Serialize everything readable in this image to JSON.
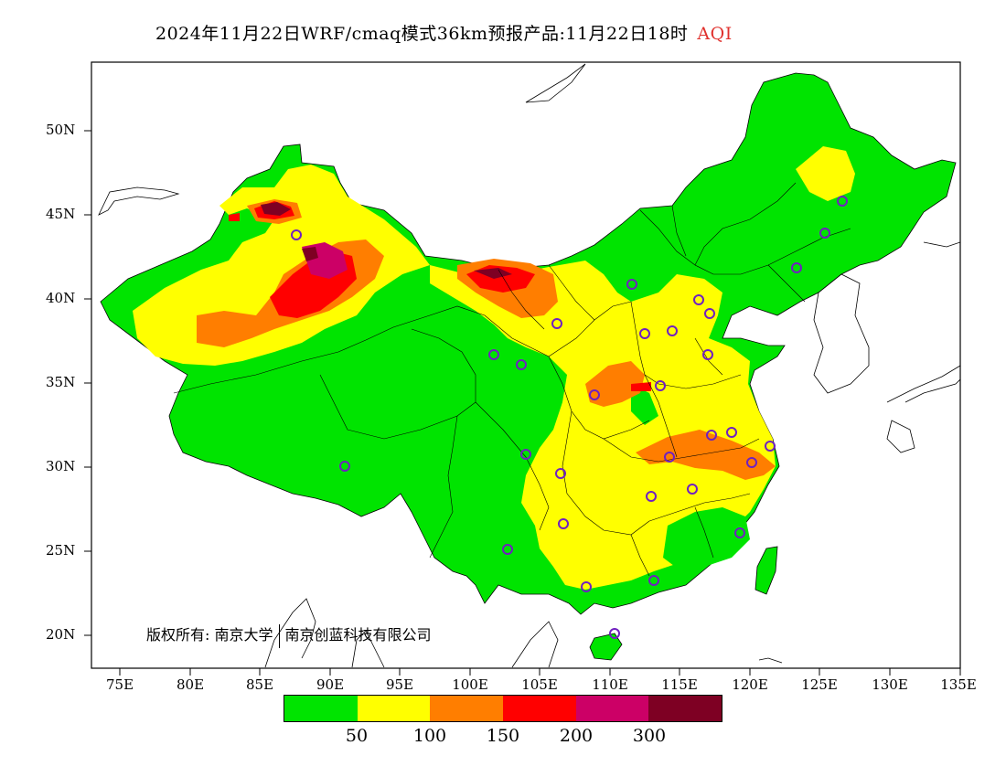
{
  "title": {
    "main": "2024年11月22日WRF/cmaq模式36km预报产品:11月22日18时",
    "variable": "AQI",
    "variable_color": "#e0322e"
  },
  "axes": {
    "y_ticks": [
      "50N",
      "45N",
      "40N",
      "35N",
      "30N",
      "25N",
      "20N"
    ],
    "x_ticks": [
      "75E",
      "80E",
      "85E",
      "90E",
      "95E",
      "100E",
      "105E",
      "110E",
      "115E",
      "120E",
      "125E",
      "130E",
      "135E"
    ],
    "lon_range": [
      73,
      135
    ],
    "lat_range": [
      18,
      54
    ]
  },
  "copyright": {
    "label": "版权所有:",
    "org1": "南京大学",
    "org2": "南京创蓝科技有限公司"
  },
  "legend": {
    "colors": [
      "#00e400",
      "#ffff00",
      "#ff7e00",
      "#ff0000",
      "#cc0066",
      "#7e0023"
    ],
    "labels": [
      "50",
      "100",
      "150",
      "200",
      "300"
    ]
  },
  "icons": {
    "station_marker": "circle-marker-icon"
  }
}
